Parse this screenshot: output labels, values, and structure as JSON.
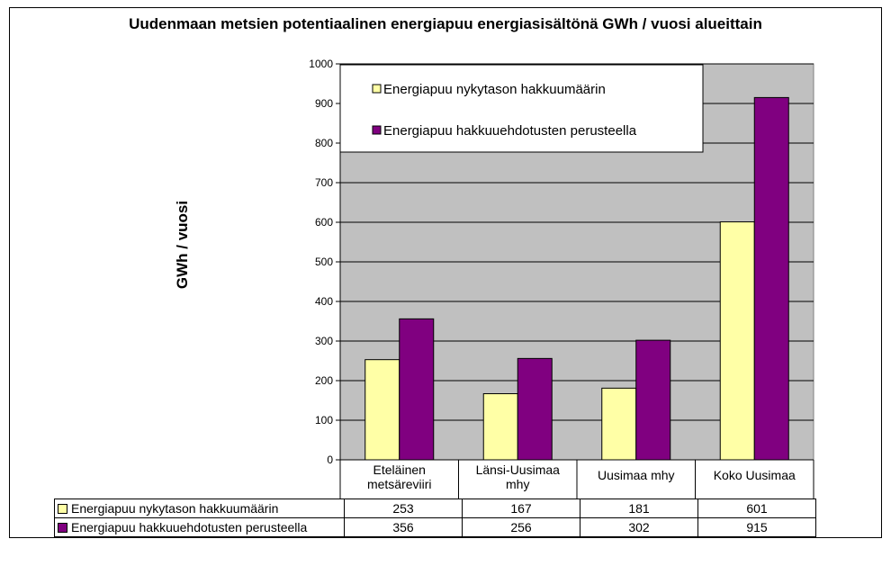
{
  "colors": {
    "plot_bg": "#C0C0C0",
    "gridline": "#000000",
    "series_1": "#FFFFA6",
    "series_2": "#800080"
  },
  "chart_data": {
    "type": "bar",
    "title": "Uudenmaan metsien potentiaalinen energiapuu energiasisältönä GWh / vuosi alueittain",
    "ylabel": "GWh / vuosi",
    "xlabel": "",
    "ylim": [
      0,
      1000
    ],
    "yticks": [
      0,
      100,
      200,
      300,
      400,
      500,
      600,
      700,
      800,
      900,
      1000
    ],
    "grid": true,
    "legend_position": "top-left inside plot",
    "categories": [
      [
        "Eteläinen",
        "metsäreviiri"
      ],
      [
        "Länsi-Uusimaa",
        "mhy"
      ],
      [
        "Uusimaa mhy"
      ],
      [
        "Koko Uusimaa"
      ]
    ],
    "series": [
      {
        "name": "Energiapuu  nykytason hakkuumäärin",
        "color": "#FFFFA6",
        "values": [
          253,
          167,
          181,
          601
        ]
      },
      {
        "name": "Energiapuu hakkuuehdotusten perusteella",
        "color": "#800080",
        "values": [
          356,
          256,
          302,
          915
        ]
      }
    ]
  }
}
